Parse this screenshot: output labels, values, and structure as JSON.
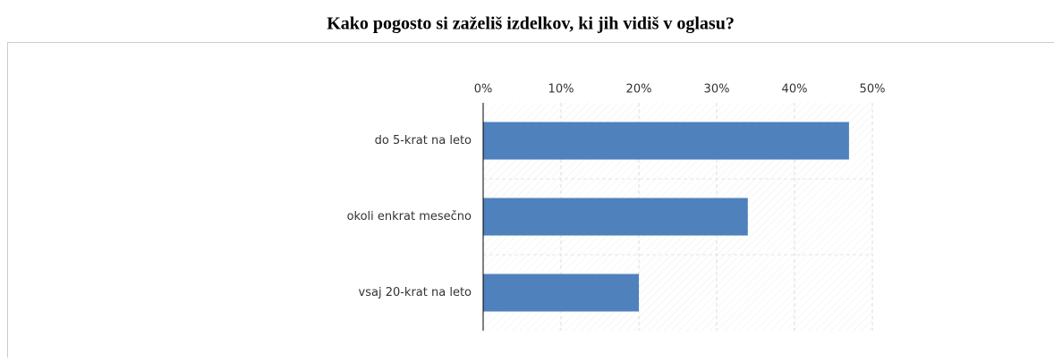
{
  "chart_data": {
    "type": "bar",
    "orientation": "horizontal",
    "title": "Kako pogosto si zaželiš izdelkov, ki jih vidiš v oglasu?",
    "categories": [
      "do 5-krat na leto",
      "okoli enkrat mesečno",
      "vsaj 20-krat na leto"
    ],
    "values": [
      47,
      34,
      20
    ],
    "color": "#4f81bd",
    "xlim": [
      0,
      50
    ],
    "xticks": [
      {
        "value": 0,
        "label": "0%"
      },
      {
        "value": 10,
        "label": "10%"
      },
      {
        "value": 20,
        "label": "20%"
      },
      {
        "value": 30,
        "label": "30%"
      },
      {
        "value": 40,
        "label": "40%"
      },
      {
        "value": 50,
        "label": "50%"
      }
    ],
    "grid": true
  }
}
